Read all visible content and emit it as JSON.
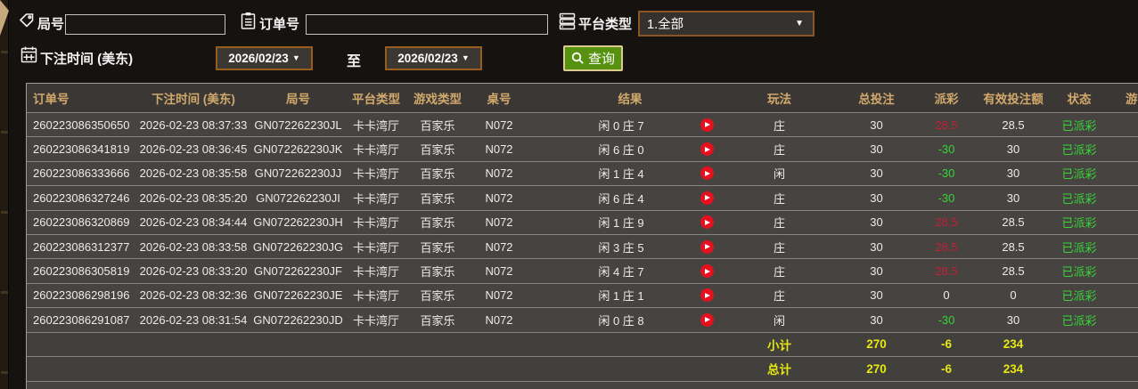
{
  "filter_bar": {
    "round_field": {
      "label": "局号",
      "value": "",
      "icon": "tag-icon"
    },
    "order_field": {
      "label": "订单号",
      "value": "",
      "icon": "clipboard-icon"
    },
    "platform_field": {
      "label": "平台类型",
      "value": "1.全部",
      "icon": "server-icon"
    },
    "bet_time": {
      "label": "下注时间 (美东)",
      "icon": "calendar-icon",
      "from": "2026/02/23",
      "to_label": "至",
      "to": "2026/02/23"
    },
    "query_button": {
      "label": "查询",
      "icon": "search-icon"
    }
  },
  "table": {
    "headers": [
      "订单号",
      "下注时间 (美东)",
      "局号",
      "平台类型",
      "游戏类型",
      "桌号",
      "结果",
      "玩法",
      "总投注",
      "派彩",
      "有效投注额",
      "状态",
      "游"
    ],
    "rows": [
      {
        "order_no": "260223086350650",
        "bet_time": "2026-02-23 08:37:33",
        "round_no": "GN072262230JL",
        "platform": "卡卡湾厅",
        "game_type": "百家乐",
        "table_no": "N072",
        "result": "闲 0 庄 7",
        "play": "庄",
        "total_bet": "30",
        "payout": "28.5",
        "payout_sign": "win",
        "valid_bet": "28.5",
        "status": "已派彩"
      },
      {
        "order_no": "260223086341819",
        "bet_time": "2026-02-23 08:36:45",
        "round_no": "GN072262230JK",
        "platform": "卡卡湾厅",
        "game_type": "百家乐",
        "table_no": "N072",
        "result": "闲 6 庄 0",
        "play": "庄",
        "total_bet": "30",
        "payout": "-30",
        "payout_sign": "loss",
        "valid_bet": "30",
        "status": "已派彩"
      },
      {
        "order_no": "260223086333666",
        "bet_time": "2026-02-23 08:35:58",
        "round_no": "GN072262230JJ",
        "platform": "卡卡湾厅",
        "game_type": "百家乐",
        "table_no": "N072",
        "result": "闲 1 庄 4",
        "play": "闲",
        "total_bet": "30",
        "payout": "-30",
        "payout_sign": "loss",
        "valid_bet": "30",
        "status": "已派彩"
      },
      {
        "order_no": "260223086327246",
        "bet_time": "2026-02-23 08:35:20",
        "round_no": "GN072262230JI",
        "platform": "卡卡湾厅",
        "game_type": "百家乐",
        "table_no": "N072",
        "result": "闲 6 庄 4",
        "play": "庄",
        "total_bet": "30",
        "payout": "-30",
        "payout_sign": "loss",
        "valid_bet": "30",
        "status": "已派彩"
      },
      {
        "order_no": "260223086320869",
        "bet_time": "2026-02-23 08:34:44",
        "round_no": "GN072262230JH",
        "platform": "卡卡湾厅",
        "game_type": "百家乐",
        "table_no": "N072",
        "result": "闲 1 庄 9",
        "play": "庄",
        "total_bet": "30",
        "payout": "28.5",
        "payout_sign": "win",
        "valid_bet": "28.5",
        "status": "已派彩"
      },
      {
        "order_no": "260223086312377",
        "bet_time": "2026-02-23 08:33:58",
        "round_no": "GN072262230JG",
        "platform": "卡卡湾厅",
        "game_type": "百家乐",
        "table_no": "N072",
        "result": "闲 3 庄 5",
        "play": "庄",
        "total_bet": "30",
        "payout": "28.5",
        "payout_sign": "win",
        "valid_bet": "28.5",
        "status": "已派彩"
      },
      {
        "order_no": "260223086305819",
        "bet_time": "2026-02-23 08:33:20",
        "round_no": "GN072262230JF",
        "platform": "卡卡湾厅",
        "game_type": "百家乐",
        "table_no": "N072",
        "result": "闲 4 庄 7",
        "play": "庄",
        "total_bet": "30",
        "payout": "28.5",
        "payout_sign": "win",
        "valid_bet": "28.5",
        "status": "已派彩"
      },
      {
        "order_no": "260223086298196",
        "bet_time": "2026-02-23 08:32:36",
        "round_no": "GN072262230JE",
        "platform": "卡卡湾厅",
        "game_type": "百家乐",
        "table_no": "N072",
        "result": "闲 1 庄 1",
        "play": "庄",
        "total_bet": "30",
        "payout": "0",
        "payout_sign": "zero",
        "valid_bet": "0",
        "status": "已派彩"
      },
      {
        "order_no": "260223086291087",
        "bet_time": "2026-02-23 08:31:54",
        "round_no": "GN072262230JD",
        "platform": "卡卡湾厅",
        "game_type": "百家乐",
        "table_no": "N072",
        "result": "闲 0 庄 8",
        "play": "闲",
        "total_bet": "30",
        "payout": "-30",
        "payout_sign": "loss",
        "valid_bet": "30",
        "status": "已派彩"
      }
    ],
    "subtotal_row": {
      "label": "小计",
      "total_bet": "270",
      "payout": "-6",
      "valid_bet": "234"
    },
    "total_row": {
      "label": "总计",
      "total_bet": "270",
      "payout": "-6",
      "valid_bet": "234"
    }
  },
  "colors": {
    "header_gold": "#d2a96b",
    "win_red": "#c41f36",
    "loss_green": "#38d438",
    "status_green": "#38d438",
    "total_yellow": "#e8e711",
    "button_green": "#569110",
    "dropdown_border": "#9a5c1d"
  }
}
